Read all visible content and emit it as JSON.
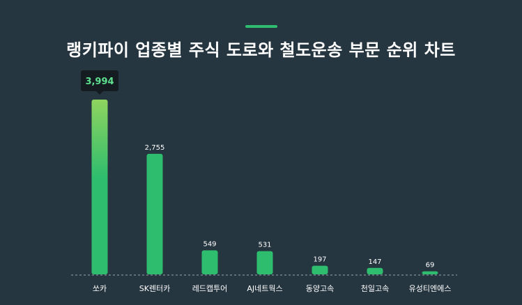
{
  "title": "랭키파이 업종별 주식 도로와 철도운송 부문 순위 차트",
  "colors": {
    "background": "#263640",
    "accent": "#2ebd6e",
    "bar_top": "#8fd45f",
    "bar": "#2ebd6e",
    "tooltip_bg": "#141c22",
    "highlight_text": "#5ee08f"
  },
  "chart_data": {
    "type": "bar",
    "title": "랭키파이 업종별 주식 도로와 철도운송 부문 순위 차트",
    "xlabel": "",
    "ylabel": "",
    "categories": [
      "쏘카",
      "SK렌터카",
      "레드캡투어",
      "AJ네트웍스",
      "동양고속",
      "천일고속",
      "유성티엔에스"
    ],
    "values": [
      3994,
      2755,
      549,
      531,
      197,
      147,
      69
    ],
    "value_labels": [
      "3,994",
      "2,755",
      "549",
      "531",
      "197",
      "147",
      "69"
    ],
    "ylim": [
      0,
      3994
    ],
    "grid": false,
    "legend": "none",
    "highlight_index": 0
  }
}
